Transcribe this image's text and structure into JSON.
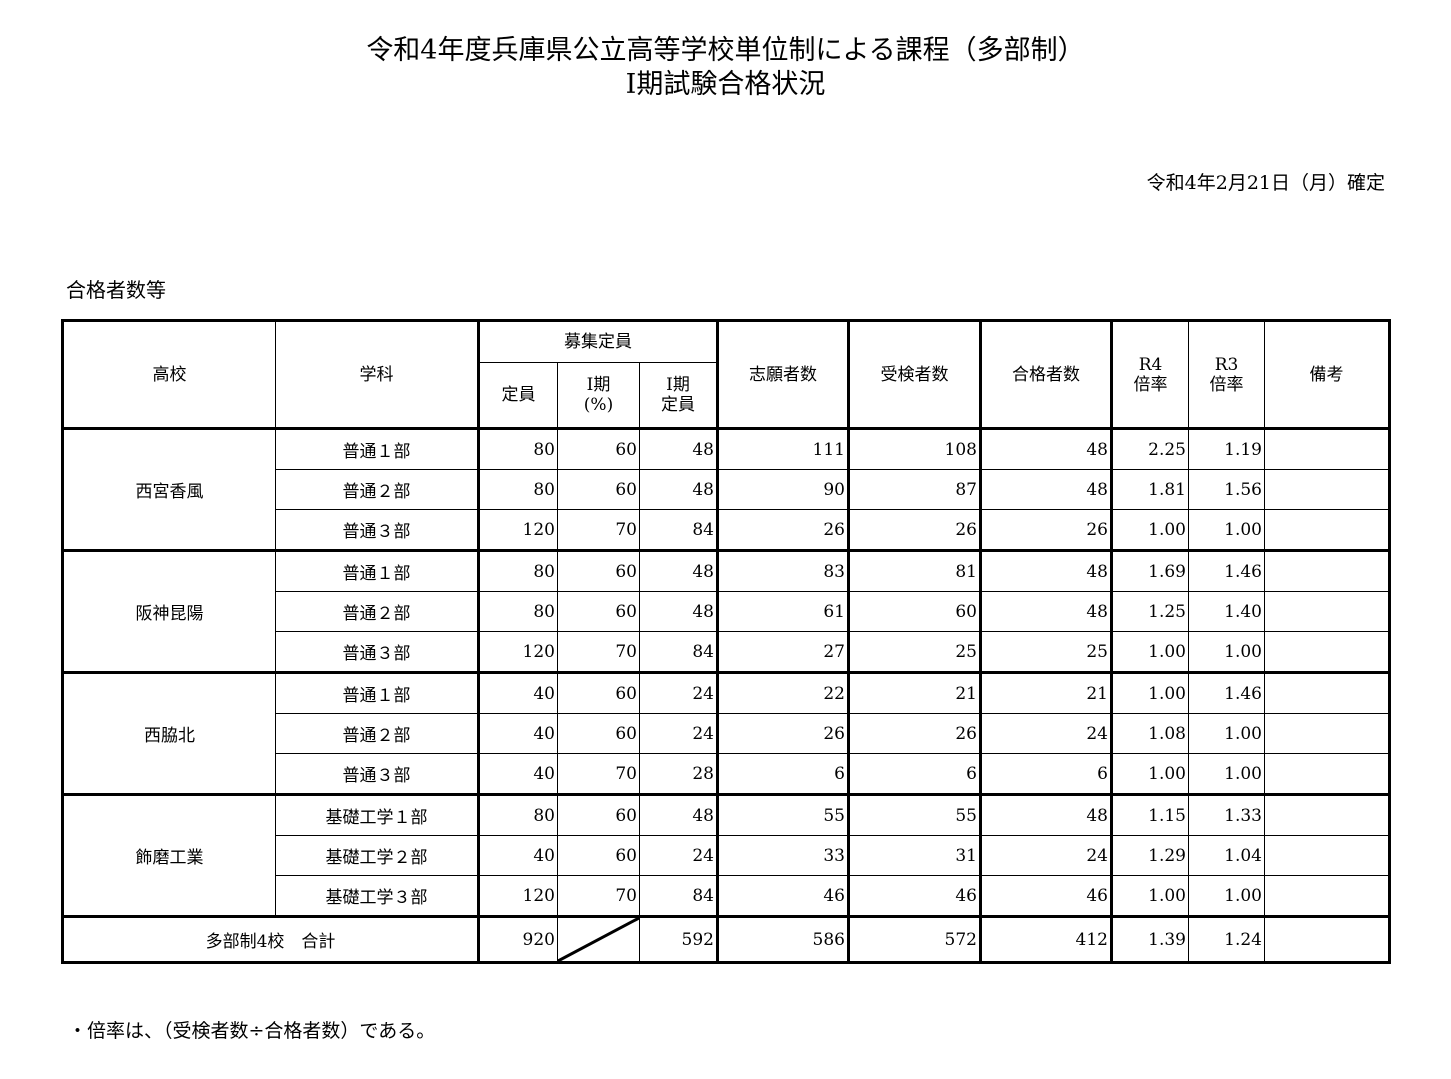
{
  "title": {
    "line1": "令和4年度兵庫県公立高等学校単位制による課程（多部制）",
    "line2": "Ⅰ期試験合格状況"
  },
  "date": "令和4年2月21日（月）確定",
  "section_label": "合格者数等",
  "headers": {
    "school": "高校",
    "course": "学科",
    "recruit": "募集定員",
    "capacity": "定員",
    "phase1_pct_a": "Ⅰ期",
    "phase1_pct_b": "(%)",
    "phase1_cap_a": "Ⅰ期",
    "phase1_cap_b": "定員",
    "applicants": "志願者数",
    "examinees": "受検者数",
    "passed": "合格者数",
    "r4_a": "R4",
    "r4_b": "倍率",
    "r3_a": "R3",
    "r3_b": "倍率",
    "remarks": "備考"
  },
  "schools": [
    {
      "name": "西宮香風",
      "rows": [
        {
          "course": "普通１部",
          "cap": "80",
          "pct": "60",
          "pcap": "48",
          "app": "111",
          "exam": "108",
          "pass": "48",
          "r4": "2.25",
          "r3": "1.19"
        },
        {
          "course": "普通２部",
          "cap": "80",
          "pct": "60",
          "pcap": "48",
          "app": "90",
          "exam": "87",
          "pass": "48",
          "r4": "1.81",
          "r3": "1.56"
        },
        {
          "course": "普通３部",
          "cap": "120",
          "pct": "70",
          "pcap": "84",
          "app": "26",
          "exam": "26",
          "pass": "26",
          "r4": "1.00",
          "r3": "1.00"
        }
      ]
    },
    {
      "name": "阪神昆陽",
      "rows": [
        {
          "course": "普通１部",
          "cap": "80",
          "pct": "60",
          "pcap": "48",
          "app": "83",
          "exam": "81",
          "pass": "48",
          "r4": "1.69",
          "r3": "1.46"
        },
        {
          "course": "普通２部",
          "cap": "80",
          "pct": "60",
          "pcap": "48",
          "app": "61",
          "exam": "60",
          "pass": "48",
          "r4": "1.25",
          "r3": "1.40"
        },
        {
          "course": "普通３部",
          "cap": "120",
          "pct": "70",
          "pcap": "84",
          "app": "27",
          "exam": "25",
          "pass": "25",
          "r4": "1.00",
          "r3": "1.00"
        }
      ]
    },
    {
      "name": "西脇北",
      "rows": [
        {
          "course": "普通１部",
          "cap": "40",
          "pct": "60",
          "pcap": "24",
          "app": "22",
          "exam": "21",
          "pass": "21",
          "r4": "1.00",
          "r3": "1.46"
        },
        {
          "course": "普通２部",
          "cap": "40",
          "pct": "60",
          "pcap": "24",
          "app": "26",
          "exam": "26",
          "pass": "24",
          "r4": "1.08",
          "r3": "1.00"
        },
        {
          "course": "普通３部",
          "cap": "40",
          "pct": "70",
          "pcap": "28",
          "app": "6",
          "exam": "6",
          "pass": "6",
          "r4": "1.00",
          "r3": "1.00"
        }
      ]
    },
    {
      "name": "飾磨工業",
      "rows": [
        {
          "course": "基礎工学１部",
          "cap": "80",
          "pct": "60",
          "pcap": "48",
          "app": "55",
          "exam": "55",
          "pass": "48",
          "r4": "1.15",
          "r3": "1.33"
        },
        {
          "course": "基礎工学２部",
          "cap": "40",
          "pct": "60",
          "pcap": "24",
          "app": "33",
          "exam": "31",
          "pass": "24",
          "r4": "1.29",
          "r3": "1.04"
        },
        {
          "course": "基礎工学３部",
          "cap": "120",
          "pct": "70",
          "pcap": "84",
          "app": "46",
          "exam": "46",
          "pass": "46",
          "r4": "1.00",
          "r3": "1.00"
        }
      ]
    }
  ],
  "total": {
    "label": "多部制4校　合計",
    "cap": "920",
    "pcap": "592",
    "app": "586",
    "exam": "572",
    "pass": "412",
    "r4": "1.39",
    "r3": "1.24"
  },
  "note": "・倍率は、（受検者数÷合格者数）である。"
}
